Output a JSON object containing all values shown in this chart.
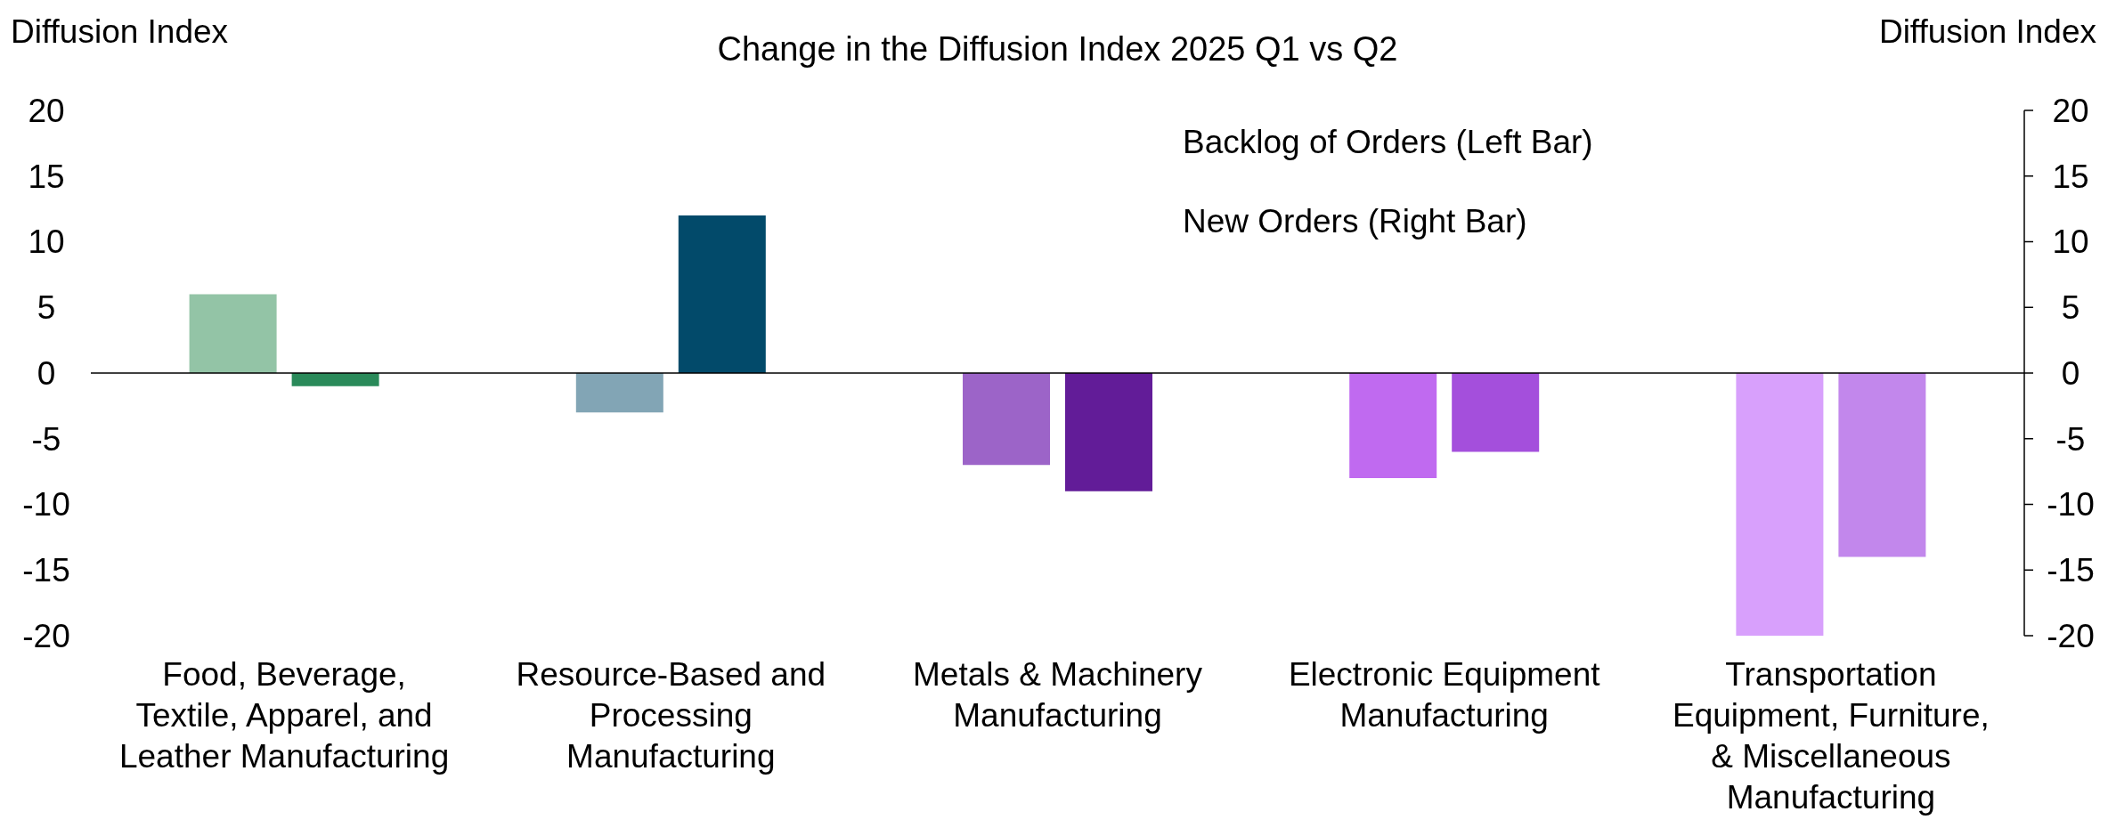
{
  "chart_data": {
    "type": "bar",
    "title": "Change in the Diffusion Index 2025 Q1 vs Q2",
    "ylabel": "Diffusion Index",
    "y2label": "Diffusion Index",
    "categories": [
      "Food, Beverage, Textile, Apparel, and Leather Manufacturing",
      "Resource-Based and Processing Manufacturing",
      "Metals & Machinery Manufacturing",
      "Electronic Equipment Manufacturing",
      "Transportation Equipment, Furniture, & Miscellaneous Manufacturing"
    ],
    "series": [
      {
        "values": [
          6,
          -3,
          -7,
          -8,
          -20
        ],
        "colors": [
          "#93c4a6",
          "#82a5b5",
          "#9c64c8",
          "#c06af0",
          "#d8a0fc"
        ]
      },
      {
        "values": [
          -1,
          12,
          -9,
          -6,
          -14
        ],
        "colors": [
          "#2a8a5a",
          "#024a6a",
          "#621c98",
          "#a44fdc",
          "#c287ec"
        ]
      }
    ],
    "annotations": [
      "Backlog of Orders (Left Bar)",
      "New Orders (Right Bar)"
    ],
    "ylim": [
      -20,
      20
    ],
    "yticks": [
      -20,
      -15,
      -10,
      -5,
      0,
      5,
      10,
      15,
      20
    ],
    "y2lim": [
      -20,
      20
    ],
    "y2ticks": [
      -20,
      -15,
      -10,
      -5,
      0,
      5,
      10,
      15,
      20
    ]
  }
}
